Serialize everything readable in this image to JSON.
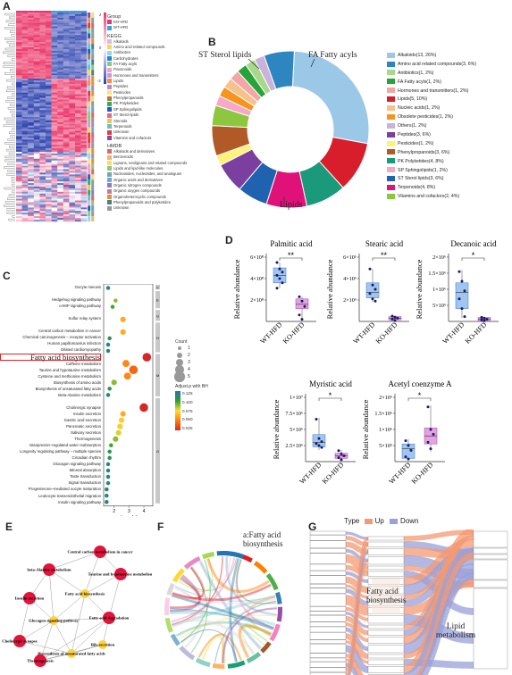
{
  "panels": {
    "A": "A",
    "B": "B",
    "C": "C",
    "D": "D",
    "E": "E",
    "F": "F",
    "G": "G"
  },
  "panelA": {
    "legend_group_title": "Group",
    "groups": [
      {
        "label": "KO-HFD",
        "color": "#e8337a"
      },
      {
        "label": "WT-HFD",
        "color": "#2ea8e0"
      }
    ],
    "legend_kegg_title": "KEGG",
    "kegg": [
      {
        "label": "Alkaloids",
        "color": "#d9b8e8"
      },
      {
        "label": "Amino acid related compounds",
        "color": "#ffd54f"
      },
      {
        "label": "Antibiotics",
        "color": "#8fd6ff"
      },
      {
        "label": "Carbohydrates",
        "color": "#2a7fd4"
      },
      {
        "label": "FA Fatty acyls",
        "color": "#7cd17c"
      },
      {
        "label": "Flavonoids",
        "color": "#f4a3c0"
      },
      {
        "label": "Hormones and transmitters",
        "color": "#c69ae0"
      },
      {
        "label": "Lipids",
        "color": "#ff8a3d"
      },
      {
        "label": "Peptides",
        "color": "#b888e0"
      },
      {
        "label": "Pesticides",
        "color": "#ffe27a"
      },
      {
        "label": "Phenylpropanoids",
        "color": "#b07a3c"
      },
      {
        "label": "PK Polyketides",
        "color": "#27ae60"
      },
      {
        "label": "SP Sphingolipids",
        "color": "#1e5fbf"
      },
      {
        "label": "ST Sterol lipids",
        "color": "#f06292"
      },
      {
        "label": "Steroids",
        "color": "#f5c542"
      },
      {
        "label": "Terpenoids",
        "color": "#5dc6c6"
      },
      {
        "label": "Unknown",
        "color": "#e53935"
      },
      {
        "label": "Vitamins and cofactors",
        "color": "#8e44ad"
      }
    ],
    "legend_hmdb_title": "HMDB",
    "hmdb": [
      {
        "label": "Alkaloids and derivatives",
        "color": "#e06666"
      },
      {
        "label": "Benzenoids",
        "color": "#f6b26b"
      },
      {
        "label": "Lignans, neolignans and related compounds",
        "color": "#ffd966"
      },
      {
        "label": "Lipids and lipid-like molecules",
        "color": "#93c47d"
      },
      {
        "label": "Nucleosides, nucleotides, and analogues",
        "color": "#76a5af"
      },
      {
        "label": "Organic acids and derivatives",
        "color": "#6fa8dc"
      },
      {
        "label": "Organic nitrogen compounds",
        "color": "#8e7cc3"
      },
      {
        "label": "Organic oxygen compounds",
        "color": "#c27ba0"
      },
      {
        "label": "Organoheterocyclic compounds",
        "color": "#e69138"
      },
      {
        "label": "Phenylpropanoids and polyketides",
        "color": "#45818e"
      },
      {
        "label": "Unknown",
        "color": "#999999"
      }
    ],
    "scale_ticks": [
      "2",
      "0",
      "-2"
    ]
  },
  "chart_data": [
    {
      "type": "pie",
      "panel": "B",
      "variant": "donut",
      "slices": [
        {
          "label": "Alkaloids(13, 26%)",
          "value": 26,
          "color": "#9cc8e8"
        },
        {
          "label": "Amino acid related compounds(3, 6%)",
          "value": 6,
          "color": "#2e86c1"
        },
        {
          "label": "Antibiotics(1, 2%)",
          "value": 2,
          "color": "#a8d88a"
        },
        {
          "label": "FA  Fatty acyls(1, 2%)",
          "value": 2,
          "color": "#27a33a"
        },
        {
          "label": "Hormones and transmitters(1, 2%)",
          "value": 2,
          "color": "#f4a6a6"
        },
        {
          "label": "Lipids(5, 10%)",
          "value": 10,
          "color": "#d91e2b"
        },
        {
          "label": "Nucleic acids(1, 2%)",
          "value": 2,
          "color": "#f8c08a"
        },
        {
          "label": "Obsolete pesticides(1, 2%)",
          "value": 2,
          "color": "#f7941d"
        },
        {
          "label": "Others(1, 2%)",
          "value": 2,
          "color": "#c9b3da"
        },
        {
          "label": "Peptides(3, 6%)",
          "value": 6,
          "color": "#7b3fa0"
        },
        {
          "label": "Pesticides(1, 2%)",
          "value": 2,
          "color": "#fff27a"
        },
        {
          "label": "Phenylpropanoids(3, 6%)",
          "value": 6,
          "color": "#b15a28"
        },
        {
          "label": "PK  Polyketides(4, 8%)",
          "value": 8,
          "color": "#1a9a7a"
        },
        {
          "label": "SP  Sphingolipids(1, 2%)",
          "value": 2,
          "color": "#f7a8c8"
        },
        {
          "label": "ST  Sterol lipids(3, 6%)",
          "value": 6,
          "color": "#1f63b0"
        },
        {
          "label": "Terpenoids(4, 8%)",
          "value": 8,
          "color": "#e0127a"
        },
        {
          "label": "Vitamins and cofactors(2, 4%)",
          "value": 4,
          "color": "#8dc63f"
        }
      ],
      "draw_order": [
        0,
        5,
        12,
        15,
        14,
        9,
        10,
        11,
        16,
        13,
        7,
        6,
        4,
        3,
        2,
        8,
        1
      ],
      "callouts": {
        "st": "ST  Sterol lipids",
        "fa": "FA  Fatty acyls",
        "lipids": "Lipids"
      }
    },
    {
      "type": "scatter",
      "panel": "C",
      "title": "",
      "xlabel": "-Log₁₀(p)",
      "xticks": [
        2,
        3,
        4
      ],
      "xlim": [
        1.3,
        4.6
      ],
      "size_legend_title": "Count",
      "size_legend": [
        1,
        2,
        3,
        4,
        5
      ],
      "color_legend_title": "Adjust.p with BH",
      "color_legend_ticks": [
        "0.125",
        "0.100",
        "0.075",
        "0.050",
        "0.025"
      ],
      "highlight": "Fatty acid biosynthesis",
      "pathways": [
        {
          "name": "Oocyte meiosis",
          "x": 1.6,
          "count": 1,
          "p": 0.12
        },
        {
          "name": "",
          "x": 0,
          "count": 0,
          "p": 0
        },
        {
          "name": "Hedgehog signaling pathway",
          "x": 2.1,
          "count": 1,
          "p": 0.09
        },
        {
          "name": "cAMP signaling pathway",
          "x": 1.9,
          "count": 1,
          "p": 0.1
        },
        {
          "name": "",
          "x": 0,
          "count": 0,
          "p": 0
        },
        {
          "name": "Sulfur relay system",
          "x": 2.6,
          "count": 2,
          "p": 0.06
        },
        {
          "name": "",
          "x": 0,
          "count": 0,
          "p": 0
        },
        {
          "name": "Central carbon metabolism in cancer",
          "x": 2.6,
          "count": 2,
          "p": 0.06
        },
        {
          "name": "Chemical carcinogenesis – receptor activation",
          "x": 1.7,
          "count": 1,
          "p": 0.11
        },
        {
          "name": "Human papillomavirus infection",
          "x": 1.6,
          "count": 1,
          "p": 0.12
        },
        {
          "name": "Dilated cardiomyopathy",
          "x": 1.6,
          "count": 1,
          "p": 0.12
        },
        {
          "name": "Fatty acid biosynthesis",
          "x": 4.2,
          "count": 4,
          "p": 0.02
        },
        {
          "name": "Caffeine metabolism",
          "x": 2.8,
          "count": 3,
          "p": 0.05
        },
        {
          "name": "Taurine and hypotaurine metabolism",
          "x": 3.3,
          "count": 4,
          "p": 0.04
        },
        {
          "name": "Cysteine and methionine metabolism",
          "x": 2.9,
          "count": 3,
          "p": 0.05
        },
        {
          "name": "Biosynthesis of amino acids",
          "x": 2.0,
          "count": 2,
          "p": 0.09
        },
        {
          "name": "Biosynthesis of unsaturated fatty acids",
          "x": 1.7,
          "count": 1,
          "p": 0.11
        },
        {
          "name": "Beta-Alanine metabolism",
          "x": 1.6,
          "count": 1,
          "p": 0.12
        },
        {
          "name": "",
          "x": 0,
          "count": 0,
          "p": 0
        },
        {
          "name": "Cholinergic synapse",
          "x": 4.0,
          "count": 4,
          "p": 0.02
        },
        {
          "name": "Insulin secretion",
          "x": 2.6,
          "count": 2,
          "p": 0.06
        },
        {
          "name": "Gastric acid secretion",
          "x": 2.5,
          "count": 2,
          "p": 0.07
        },
        {
          "name": "Pancreatic secretion",
          "x": 2.4,
          "count": 2,
          "p": 0.07
        },
        {
          "name": "Salivary secretion",
          "x": 2.3,
          "count": 2,
          "p": 0.08
        },
        {
          "name": "Thermogenesis",
          "x": 2.1,
          "count": 2,
          "p": 0.09
        },
        {
          "name": "Vasopressin–regulated water reabsorption",
          "x": 1.8,
          "count": 1,
          "p": 0.1
        },
        {
          "name": "Longevity regulating pathway – multiple species",
          "x": 1.7,
          "count": 1,
          "p": 0.11
        },
        {
          "name": "Circadian rhythm",
          "x": 1.7,
          "count": 1,
          "p": 0.11
        },
        {
          "name": "Glucagon signaling pathway",
          "x": 1.6,
          "count": 1,
          "p": 0.12
        },
        {
          "name": "Mineral absorption",
          "x": 1.6,
          "count": 1,
          "p": 0.12
        },
        {
          "name": "Taste transduction",
          "x": 1.6,
          "count": 1,
          "p": 0.12
        },
        {
          "name": "Signal transduction",
          "x": 1.6,
          "count": 1,
          "p": 0.12
        },
        {
          "name": "Progesterone–mediated oocyte maturation",
          "x": 1.5,
          "count": 1,
          "p": 0.12
        },
        {
          "name": "Leukocyte transendothelial migration",
          "x": 1.5,
          "count": 1,
          "p": 0.12
        },
        {
          "name": "Insulin signaling pathway",
          "x": 1.5,
          "count": 1,
          "p": 0.12
        }
      ],
      "side_categories": [
        "C",
        "E",
        "G",
        "H",
        "M",
        "O"
      ]
    },
    {
      "type": "box",
      "panel": "D",
      "ylabel": "Relative abundance",
      "categories": [
        "WT-HFD",
        "KO-HFD"
      ],
      "plots": [
        {
          "title": "Palmitic acid",
          "sig": "**",
          "yticks": [
            "6×10⁸",
            "4×10⁸",
            "2×10⁸"
          ],
          "ymax": 6,
          "wt": {
            "q1": 3.6,
            "med": 4.3,
            "q3": 5.0,
            "lo": 3.1,
            "hi": 5.5,
            "pts": [
              5.5,
              4.9,
              4.6,
              4.3,
              4.0,
              3.6,
              3.1
            ]
          },
          "ko": {
            "q1": 1.2,
            "med": 1.6,
            "q3": 2.1,
            "lo": 0.1,
            "hi": 2.3,
            "pts": [
              2.3,
              1.9,
              1.4,
              0.6,
              0.2
            ]
          }
        },
        {
          "title": "Stearic acid",
          "sig": "**",
          "yticks": [
            "6×10⁶",
            "4×10⁶",
            "2×10⁶"
          ],
          "ymax": 6,
          "wt": {
            "q1": 2.2,
            "med": 2.7,
            "q3": 3.6,
            "lo": 1.8,
            "hi": 4.9,
            "pts": [
              4.9,
              3.4,
              3.0,
              2.6,
              2.1,
              1.9
            ]
          },
          "ko": {
            "q1": 0.15,
            "med": 0.3,
            "q3": 0.45,
            "lo": 0.1,
            "hi": 0.55,
            "pts": [
              0.5,
              0.4,
              0.3,
              0.2,
              0.1
            ]
          }
        },
        {
          "title": "Decanoic acid",
          "sig": "*",
          "yticks": [
            "2×10⁶",
            "1.5×10⁶",
            "1×10⁶",
            "5×10⁵"
          ],
          "ymax": 2,
          "wt": {
            "q1": 0.4,
            "med": 0.9,
            "q3": 1.2,
            "lo": 0.1,
            "hi": 1.6,
            "pts": [
              1.55,
              1.25,
              0.95,
              0.7,
              0.4,
              0.15
            ]
          },
          "ko": {
            "q1": 0.03,
            "med": 0.08,
            "q3": 0.12,
            "lo": 0.0,
            "hi": 0.15,
            "pts": [
              0.13,
              0.1,
              0.07,
              0.05,
              0.02
            ]
          }
        },
        {
          "title": "Myristic acid",
          "sig": "*",
          "yticks": [
            "1×10⁷",
            "7.5×10⁶",
            "5×10⁶",
            "2.5×10⁶"
          ],
          "ymax": 10,
          "wt": {
            "q1": 2.3,
            "med": 3.0,
            "q3": 4.2,
            "lo": 1.8,
            "hi": 6.8,
            "pts": [
              6.6,
              3.6,
              3.1,
              2.8,
              2.5,
              2.2
            ]
          },
          "ko": {
            "q1": 0.5,
            "med": 0.9,
            "q3": 1.3,
            "lo": 0.2,
            "hi": 1.8,
            "pts": [
              1.7,
              1.2,
              0.9,
              0.6,
              0.3
            ]
          }
        },
        {
          "title": "Acetyl coenzyme A",
          "sig": "*",
          "yticks": [
            "2×10⁶",
            "1.5×10⁶",
            "1×10⁶",
            "5×10⁵"
          ],
          "ymax": 2,
          "wt": {
            "q1": 0.1,
            "med": 0.4,
            "q3": 0.55,
            "lo": 0.05,
            "hi": 0.7,
            "pts": [
              0.65,
              0.5,
              0.35,
              0.15,
              0.08
            ]
          },
          "ko": {
            "q1": 0.55,
            "med": 0.8,
            "q3": 1.05,
            "lo": 0.3,
            "hi": 1.75,
            "pts": [
              1.7,
              1.0,
              0.85,
              0.6,
              0.4
            ]
          }
        }
      ]
    }
  ],
  "panelE": {
    "nodes": [
      {
        "label": "Central carbon metabolism in cancer",
        "color": "#e2143c"
      },
      {
        "label": "beta-Alanine metabolism",
        "color": "#e2143c"
      },
      {
        "label": "Taurine and hypotaurine metabolism",
        "color": "#e2143c"
      },
      {
        "label": "Fatty acid biosynthesis",
        "color": "#ffd23c"
      },
      {
        "label": "Insulin secretion",
        "color": "#e2143c"
      },
      {
        "label": "Glucagon signaling pathway",
        "color": "#ffd23c"
      },
      {
        "label": "Fatty acid degradation",
        "color": "#e2143c"
      },
      {
        "label": "Cholinergic synapse",
        "color": "#e2143c"
      },
      {
        "label": "Bile secretion",
        "color": "#ffd23c"
      },
      {
        "label": "Biosynthesis of unsaturated fatty acids",
        "color": "#ffd23c"
      },
      {
        "label": "Thermogenesis",
        "color": "#e2143c"
      }
    ]
  },
  "panelF": {
    "title": "a:Fatty acid biosynthesis"
  },
  "panelG": {
    "legend_title": "Type",
    "up": "Up",
    "down": "Down",
    "center_label": "Fatty acid biosynthesis",
    "right_label": "Lipid metabolism"
  }
}
